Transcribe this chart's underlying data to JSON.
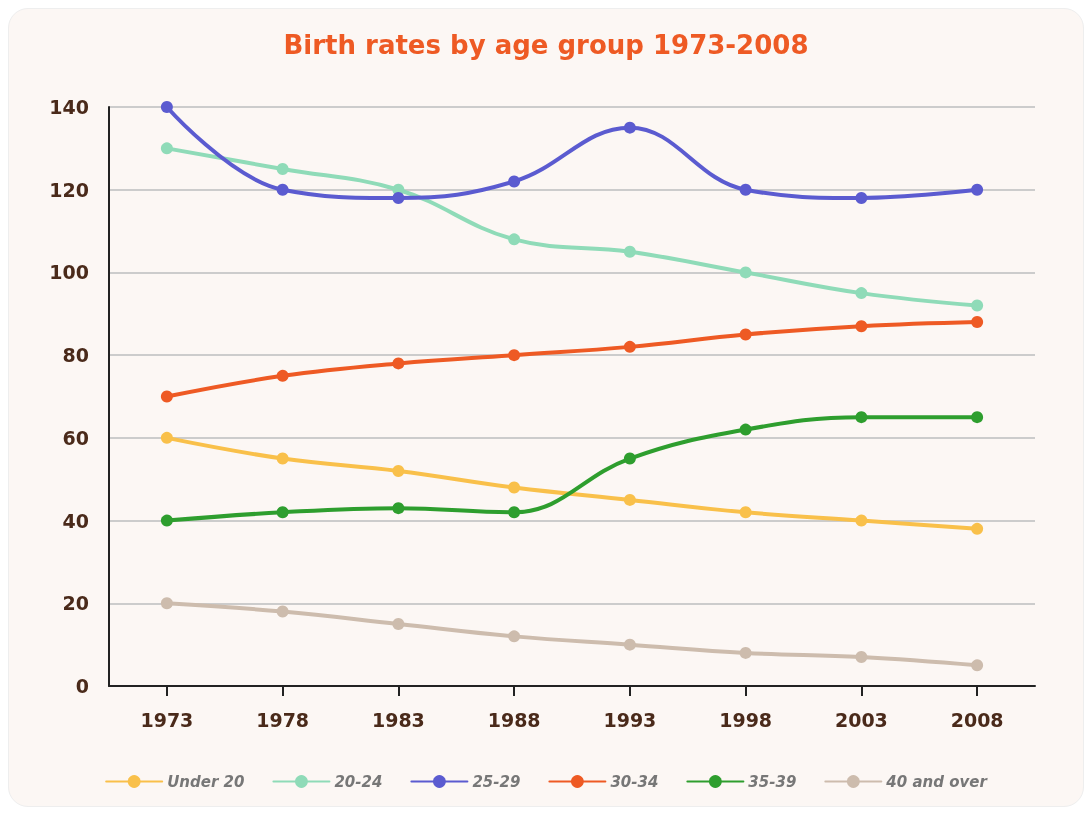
{
  "chart_data": {
    "type": "line",
    "title": "Birth rates by age group 1973-2008",
    "categories": [
      "1973",
      "1978",
      "1983",
      "1988",
      "1993",
      "1998",
      "2003",
      "2008"
    ],
    "series": [
      {
        "name": "Under 20",
        "color": "#f9c04a",
        "values": [
          60,
          55,
          52,
          48,
          45,
          42,
          40,
          38
        ]
      },
      {
        "name": "20-24",
        "color": "#8fdbb8",
        "values": [
          130,
          125,
          120,
          108,
          105,
          100,
          95,
          92
        ]
      },
      {
        "name": "25-29",
        "color": "#5b5bd0",
        "values": [
          140,
          120,
          118,
          122,
          135,
          120,
          118,
          120
        ]
      },
      {
        "name": "30-34",
        "color": "#ee5a24",
        "values": [
          70,
          75,
          78,
          80,
          82,
          85,
          87,
          88
        ]
      },
      {
        "name": "35-39",
        "color": "#2e9e2e",
        "values": [
          40,
          42,
          43,
          42,
          55,
          62,
          65,
          65
        ]
      },
      {
        "name": "40 and over",
        "color": "#cdbcad",
        "values": [
          20,
          18,
          15,
          12,
          10,
          8,
          7,
          5
        ]
      }
    ],
    "ylim": [
      0,
      140
    ],
    "yticks": [
      0,
      20,
      40,
      60,
      80,
      100,
      120,
      140
    ],
    "grid": "y",
    "legend": "bottom",
    "marker": "circle",
    "line_style": "solid"
  }
}
